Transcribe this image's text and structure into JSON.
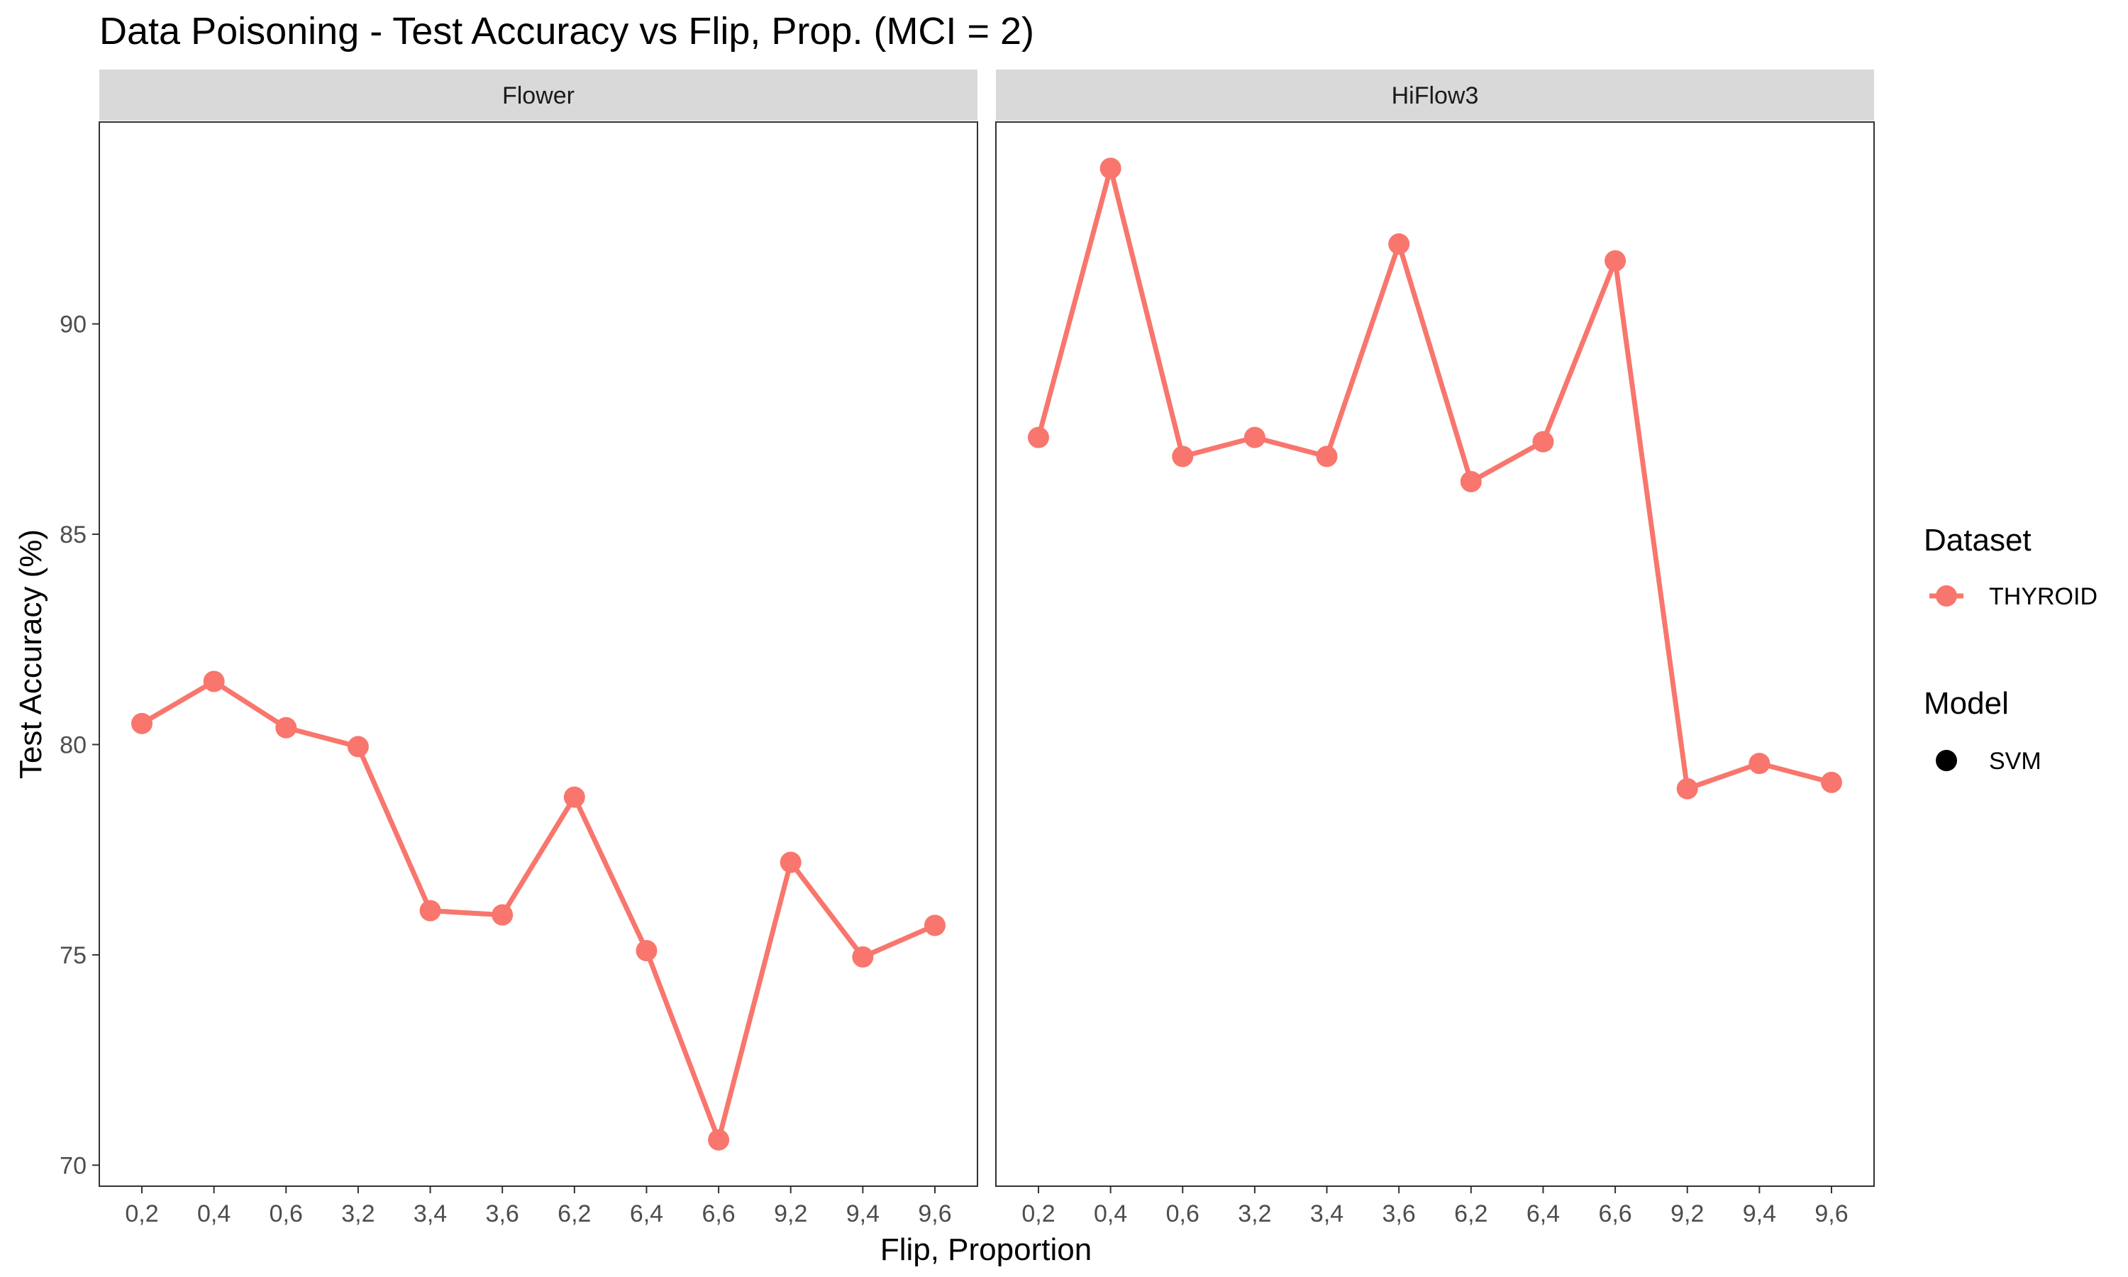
{
  "chart_data": {
    "type": "line",
    "title": "Data Poisoning - Test Accuracy vs Flip, Prop. (MCI = 2)",
    "xlabel": "Flip, Proportion",
    "ylabel": "Test Accuracy (%)",
    "categories": [
      "0,2",
      "0,4",
      "0,6",
      "3,2",
      "3,4",
      "3,6",
      "6,2",
      "6,4",
      "6,6",
      "9,2",
      "9,4",
      "9,6"
    ],
    "ylim": [
      69.5,
      94.8
    ],
    "yticks": [
      70,
      75,
      80,
      85,
      90
    ],
    "grid": false,
    "legend_position": "right",
    "color": "#F8766D",
    "facets": [
      {
        "name": "Flower",
        "series": [
          {
            "name": "THYROID",
            "values": [
              80.5,
              81.5,
              80.4,
              79.95,
              76.05,
              75.95,
              78.75,
              75.1,
              70.6,
              77.2,
              74.95,
              75.7
            ]
          }
        ]
      },
      {
        "name": "HiFlow3",
        "series": [
          {
            "name": "THYROID",
            "values": [
              87.3,
              93.7,
              86.85,
              87.3,
              86.85,
              91.9,
              86.25,
              87.2,
              91.5,
              78.95,
              79.55,
              79.1
            ]
          }
        ]
      }
    ],
    "legend": {
      "dataset_title": "Dataset",
      "dataset_items": [
        "THYROID"
      ],
      "model_title": "Model",
      "model_items": [
        "SVM"
      ]
    }
  }
}
